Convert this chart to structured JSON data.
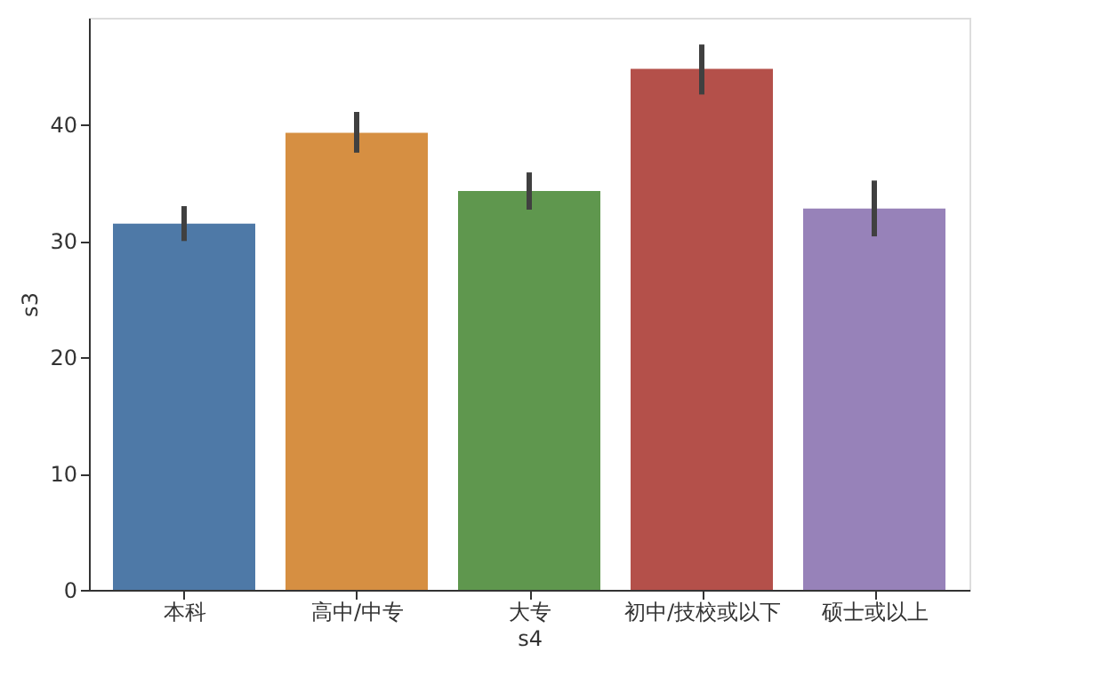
{
  "chart_data": {
    "type": "bar",
    "xlabel": "s4",
    "ylabel": "s3",
    "categories": [
      "本科",
      "高中/中专",
      "大专",
      "初中/技校或以下",
      "硕士或以上"
    ],
    "values": [
      31.5,
      39.3,
      34.3,
      44.8,
      32.8
    ],
    "colors": [
      "#4e79a7",
      "#d68f42",
      "#5f974e",
      "#b4504a",
      "#9782b9"
    ],
    "errors": [
      [
        30.0,
        33.0
      ],
      [
        37.6,
        41.1
      ],
      [
        32.7,
        35.9
      ],
      [
        42.6,
        46.9
      ],
      [
        30.4,
        35.2
      ]
    ],
    "ylim": [
      0,
      49.2
    ],
    "yticks": [
      0,
      10,
      20,
      30,
      40
    ],
    "grid": false
  }
}
